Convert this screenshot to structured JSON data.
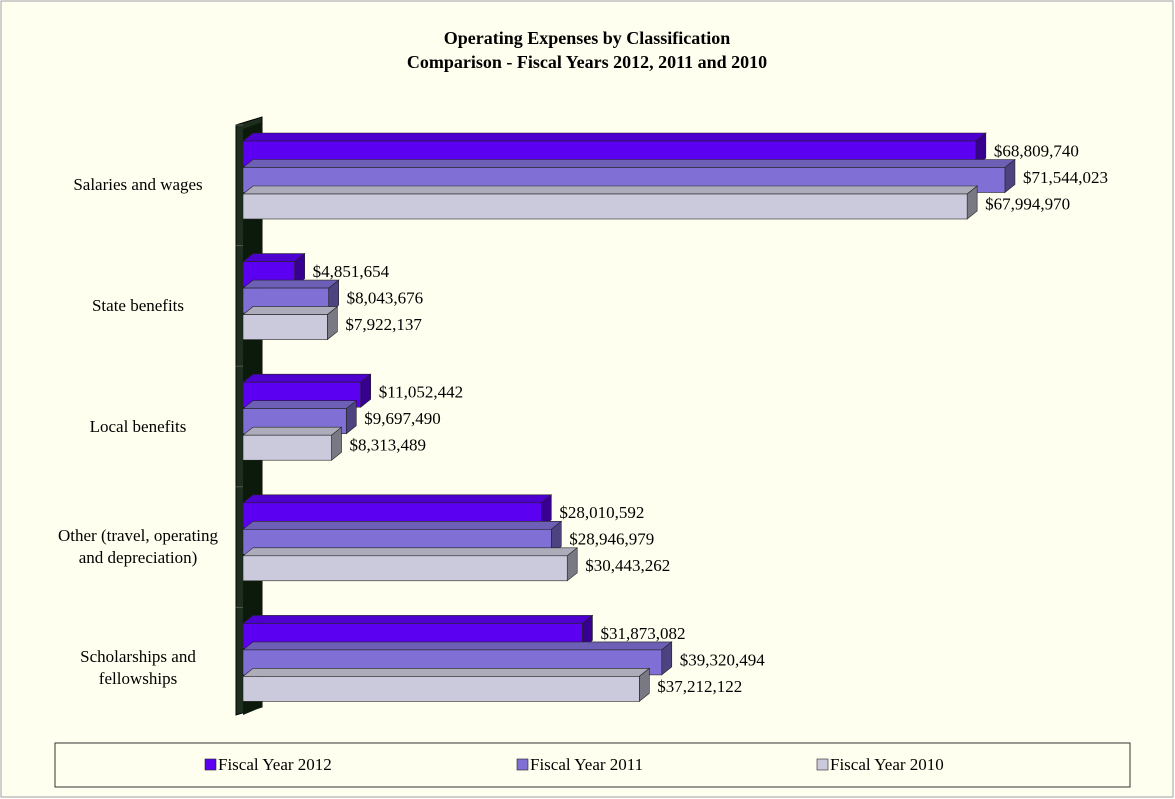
{
  "chart_data": {
    "type": "bar",
    "orientation": "horizontal",
    "title": "Operating Expenses by Classification",
    "subtitle": "Comparison - Fiscal Years 2012, 2011 and 2010",
    "categories": [
      "Salaries and wages",
      "State benefits",
      "Local benefits",
      "Other (travel, operating and depreciation)",
      "Scholarships and fellowships"
    ],
    "series": [
      {
        "name": "Fiscal Year 2012",
        "color": "#5c00f2",
        "values": [
          68809740,
          4851654,
          11052442,
          28010592,
          31873082
        ],
        "value_labels": [
          "$68,809,740",
          "$4,851,654",
          "$11,052,442",
          "$28,010,592",
          "$31,873,082"
        ]
      },
      {
        "name": "Fiscal Year 2011",
        "color": "#8070d6",
        "values": [
          71544023,
          8043676,
          9697490,
          28946979,
          39320494
        ],
        "value_labels": [
          "$71,544,023",
          "$8,043,676",
          "$9,697,490",
          "$28,946,979",
          "$39,320,494"
        ]
      },
      {
        "name": "Fiscal Year 2010",
        "color": "#cacadc",
        "values": [
          67994970,
          7922137,
          8313489,
          30443262,
          37212122
        ],
        "value_labels": [
          "$67,994,970",
          "$7,922,137",
          "$8,313,489",
          "$30,443,262",
          "$37,212,122"
        ]
      }
    ],
    "xlim": [
      0,
      80000000
    ],
    "legend": "bottom"
  }
}
